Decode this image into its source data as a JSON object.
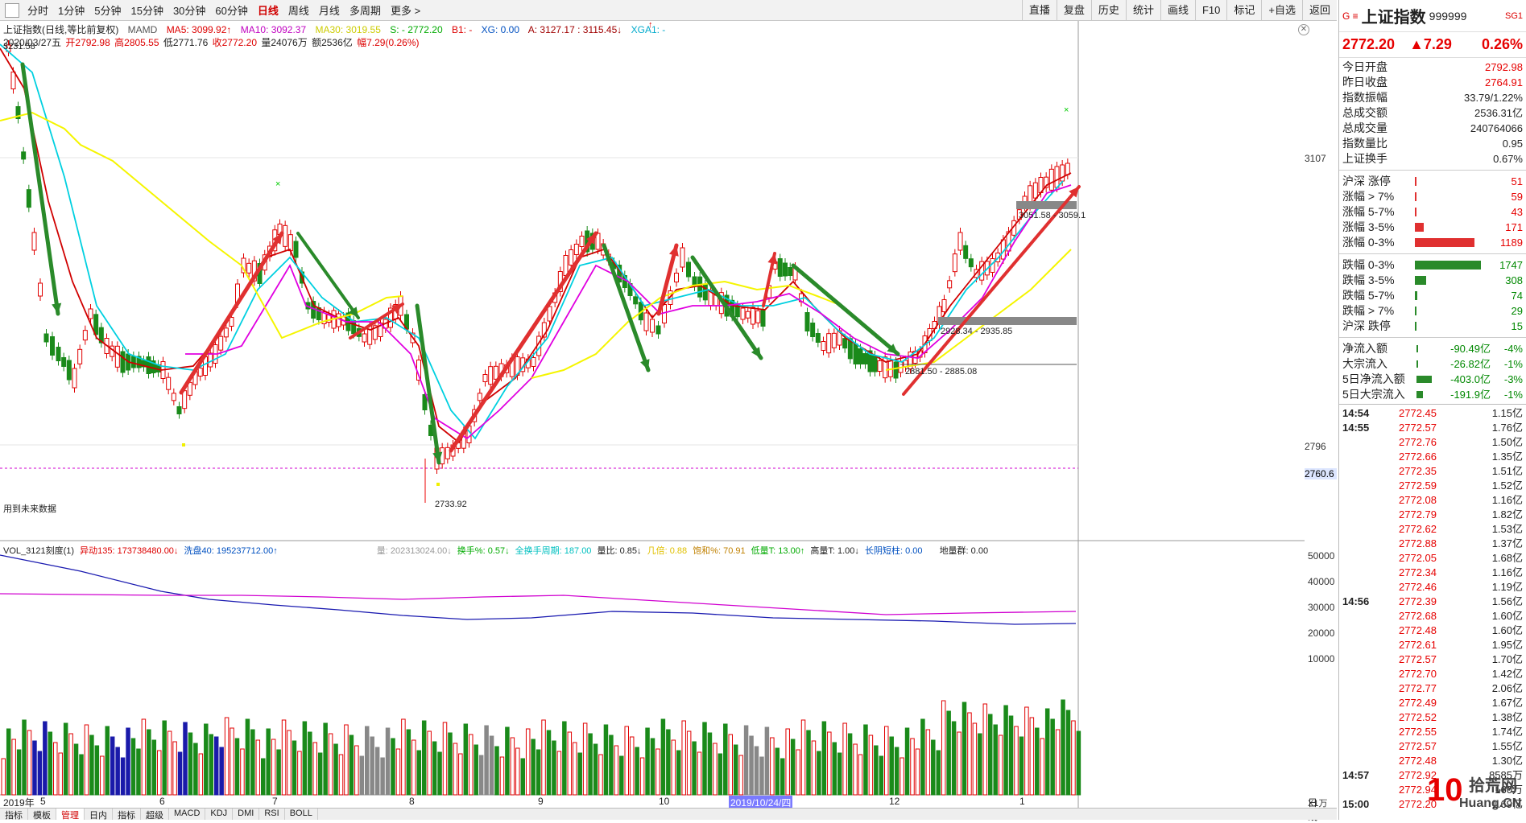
{
  "toolbar": {
    "periods": [
      "分时",
      "1分钟",
      "5分钟",
      "15分钟",
      "30分钟",
      "60分钟",
      "日线",
      "周线",
      "月线",
      "多周期",
      "更多 >"
    ],
    "active_period": "日线",
    "tools": [
      "直播",
      "复盘",
      "历史",
      "统计",
      "画线",
      "F10",
      "标记",
      "+自选",
      "返回"
    ]
  },
  "info": {
    "title": "上证指数(日线,等比前复权)",
    "indicator": "MAMD",
    "ma5": "MA5: 3099.92↑",
    "ma10": "MA10: 3092.37",
    "ma30": "MA30: 3019.55",
    "s": "S: - 2772.20",
    "b1": "B1: -",
    "xg": "XG: 0.00",
    "a": "A: 3127.17 : 3115.45↓",
    "xga1": "XGA1: -"
  },
  "dateline": {
    "date": "2020/03/27五",
    "open": "开2792.98",
    "high": "高2805.55",
    "low": "低2771.76",
    "close": "收2772.20",
    "volume": "量24076万",
    "amount": "额2536亿",
    "change": "幅7.29(0.26%)"
  },
  "chart_labels": {
    "high_label": "3231.58",
    "low_label": "2733.92",
    "future_note": "用到未来数据",
    "range1": "3051.58 - 3059.1",
    "range2": "2928.34 - 2935.85",
    "range3": "2881.50 - 2885.08",
    "axis_3107": "3107",
    "axis_2796": "2796",
    "axis_2760": "2760.6"
  },
  "vol_info": {
    "name": "VOL_3121刻度(1)",
    "yd": "异动135: 173738480.00↓",
    "xp": "洗盘40: 195237712.00↑",
    "liang": "量: 202313024.00↓",
    "hs": "换手%: 0.57↓",
    "qhs": "全换手周期: 187.00",
    "lb": "量比: 0.85↓",
    "jb": "几倍: 0.88",
    "bh": "饱和%: 70.91",
    "dl": "低量T: 13.00↑",
    "gl": "高量T: 1.00↓",
    "cy": "长阴短柱: 0.00",
    "dl2": "地量群: 0.00",
    "axis": [
      "50000",
      "40000",
      "30000",
      "20000",
      "10000"
    ],
    "unit": "X1万"
  },
  "xaxis": {
    "labels": [
      "2019年",
      "5",
      "6",
      "7",
      "8",
      "9",
      "10",
      "2019/10/24/四",
      "12",
      "1",
      "日线"
    ]
  },
  "bottom_tabs": [
    "指标",
    "模板",
    "管理",
    "日内",
    "指标",
    "超级",
    "MACD",
    "KDJ",
    "DMI",
    "RSI",
    "BOLL"
  ],
  "panel": {
    "g": "G ≡",
    "name": "上证指数",
    "code": "999999",
    "sg": "SG1",
    "price": "2772.20",
    "change": "▲7.29",
    "pct": "0.26%",
    "stats": [
      {
        "label": "今日开盘",
        "value": "2792.98"
      },
      {
        "label": "昨日收盘",
        "value": "2764.91"
      },
      {
        "label": "指数振幅",
        "value": "33.79/1.22%"
      },
      {
        "label": "总成交额",
        "value": "2536.31亿"
      },
      {
        "label": "总成交量",
        "value": "240764066"
      },
      {
        "label": "指数量比",
        "value": "0.95"
      },
      {
        "label": "上证换手",
        "value": "0.67%"
      }
    ],
    "breadth_up": [
      {
        "label": "沪深 涨停",
        "count": "51",
        "frac": 0.02
      },
      {
        "label": "涨幅 > 7%",
        "count": "59",
        "frac": 0.02
      },
      {
        "label": "涨幅 5-7%",
        "count": "43",
        "frac": 0.015
      },
      {
        "label": "涨幅 3-5%",
        "count": "171",
        "frac": 0.09
      },
      {
        "label": "涨幅 0-3%",
        "count": "1189",
        "frac": 0.62
      }
    ],
    "breadth_down": [
      {
        "label": "跌幅 0-3%",
        "count": "1747",
        "frac": 0.96
      },
      {
        "label": "跌幅 3-5%",
        "count": "308",
        "frac": 0.17
      },
      {
        "label": "跌幅 5-7%",
        "count": "74",
        "frac": 0.03
      },
      {
        "label": "跌幅 > 7%",
        "count": "29",
        "frac": 0.01
      },
      {
        "label": "沪深 跌停",
        "count": "15",
        "frac": 0.005
      }
    ],
    "flows": [
      {
        "label": "净流入额",
        "value": "-90.49亿",
        "pct": "-4%",
        "frac": 0.04
      },
      {
        "label": "大宗流入",
        "value": "-26.82亿",
        "pct": "-1%",
        "frac": 0.02
      },
      {
        "label": "5日净流入额",
        "value": "-403.0亿",
        "pct": "-3%",
        "frac": 0.38
      },
      {
        "label": "5日大宗流入",
        "value": "-191.9亿",
        "pct": "-1%",
        "frac": 0.15
      }
    ],
    "ticks": [
      {
        "t": "14:54",
        "p": "2772.45",
        "q": "1.15亿"
      },
      {
        "t": "14:55",
        "p": "2772.57",
        "q": "1.76亿"
      },
      {
        "t": "",
        "p": "2772.76",
        "q": "1.50亿"
      },
      {
        "t": "",
        "p": "2772.66",
        "q": "1.35亿"
      },
      {
        "t": "",
        "p": "2772.35",
        "q": "1.51亿"
      },
      {
        "t": "",
        "p": "2772.59",
        "q": "1.52亿"
      },
      {
        "t": "",
        "p": "2772.08",
        "q": "1.16亿"
      },
      {
        "t": "",
        "p": "2772.79",
        "q": "1.82亿"
      },
      {
        "t": "",
        "p": "2772.62",
        "q": "1.53亿"
      },
      {
        "t": "",
        "p": "2772.88",
        "q": "1.37亿"
      },
      {
        "t": "",
        "p": "2772.05",
        "q": "1.68亿"
      },
      {
        "t": "",
        "p": "2772.34",
        "q": "1.16亿"
      },
      {
        "t": "",
        "p": "2772.46",
        "q": "1.19亿"
      },
      {
        "t": "14:56",
        "p": "2772.39",
        "q": "1.56亿"
      },
      {
        "t": "",
        "p": "2772.68",
        "q": "1.60亿"
      },
      {
        "t": "",
        "p": "2772.48",
        "q": "1.60亿"
      },
      {
        "t": "",
        "p": "2772.61",
        "q": "1.95亿"
      },
      {
        "t": "",
        "p": "2772.57",
        "q": "1.70亿"
      },
      {
        "t": "",
        "p": "2772.70",
        "q": "1.42亿"
      },
      {
        "t": "",
        "p": "2772.77",
        "q": "2.06亿"
      },
      {
        "t": "",
        "p": "2772.49",
        "q": "1.67亿"
      },
      {
        "t": "",
        "p": "2772.52",
        "q": "1.38亿"
      },
      {
        "t": "",
        "p": "2772.55",
        "q": "1.74亿"
      },
      {
        "t": "",
        "p": "2772.57",
        "q": "1.55亿"
      },
      {
        "t": "",
        "p": "2772.48",
        "q": "1.30亿"
      },
      {
        "t": "14:57",
        "p": "2772.92",
        "q": "8585万"
      },
      {
        "t": "",
        "p": "2772.94",
        "q": "160万"
      },
      {
        "t": "15:00",
        "p": "2772.20",
        "q": "1.69亿"
      }
    ],
    "logo": {
      "ten": "10",
      "name": "拾荒网",
      "url": "Huang.CN"
    }
  },
  "chart_data": {
    "type": "candlestick",
    "title": "上证指数(日线,等比前复权)",
    "ylim": [
      2733.92,
      3231.58
    ],
    "price_axis_ticks": [
      3107,
      2796,
      2760.6
    ],
    "annotated_points": {
      "high": 3231.58,
      "low": 2733.92
    },
    "last_close": 2772.2,
    "ma": {
      "MA5": 3099.92,
      "MA10": 3092.37,
      "MA30": 3019.55
    },
    "support_ranges": [
      [
        3051.58,
        3059.1
      ],
      [
        2928.34,
        2935.85
      ],
      [
        2881.5,
        2885.08
      ]
    ],
    "volume_axis": [
      10000,
      20000,
      30000,
      40000,
      50000
    ],
    "volume_unit": "万"
  }
}
